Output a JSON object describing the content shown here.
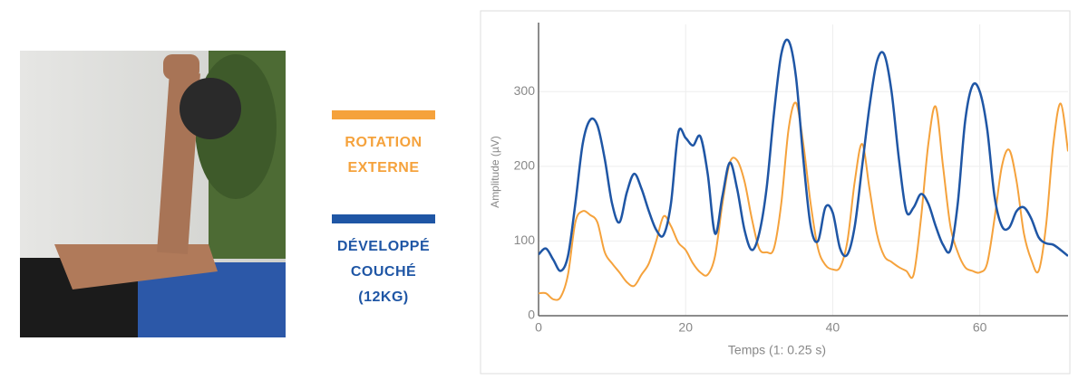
{
  "chart_data": {
    "type": "line",
    "x_label": "Temps (1: 0.25 s)",
    "y_label": "Amplitude (µV)",
    "x": [
      0,
      1,
      2,
      3,
      4,
      5,
      6,
      7,
      8,
      9,
      10,
      11,
      12,
      13,
      14,
      15,
      16,
      17,
      18,
      19,
      20,
      21,
      22,
      23,
      24,
      25,
      26,
      27,
      28,
      29,
      30,
      31,
      32,
      33,
      34,
      35,
      36,
      37,
      38,
      39,
      40,
      41,
      42,
      43,
      44,
      45,
      46,
      47,
      48,
      49,
      50,
      51,
      52,
      53,
      54,
      55,
      56,
      57,
      58,
      59,
      60,
      61,
      62,
      63,
      64,
      65,
      66,
      67,
      68,
      69,
      70,
      71,
      72
    ],
    "series": [
      {
        "name": "ROTATION EXTERNE",
        "color": "#f5a23c",
        "values": [
          30,
          30,
          22,
          25,
          55,
          125,
          140,
          135,
          125,
          85,
          70,
          58,
          45,
          40,
          55,
          70,
          100,
          133,
          120,
          98,
          88,
          70,
          58,
          55,
          80,
          150,
          205,
          208,
          180,
          130,
          90,
          85,
          90,
          150,
          250,
          285,
          230,
          150,
          90,
          68,
          62,
          65,
          100,
          180,
          230,
          170,
          110,
          80,
          72,
          65,
          60,
          55,
          130,
          230,
          280,
          200,
          120,
          85,
          65,
          60,
          58,
          70,
          130,
          200,
          222,
          180,
          110,
          75,
          60,
          120,
          230,
          284,
          220
        ]
      },
      {
        "name": "DÉVELOPPÉ COUCHÉ (12KG)",
        "color": "#1f56a5",
        "values": [
          82,
          90,
          75,
          60,
          80,
          150,
          230,
          262,
          255,
          210,
          150,
          125,
          165,
          190,
          170,
          140,
          115,
          108,
          150,
          245,
          238,
          228,
          240,
          190,
          110,
          160,
          205,
          170,
          115,
          88,
          110,
          170,
          270,
          350,
          368,
          320,
          210,
          120,
          100,
          145,
          138,
          90,
          82,
          120,
          200,
          280,
          340,
          350,
          300,
          210,
          140,
          145,
          163,
          150,
          120,
          95,
          88,
          150,
          260,
          308,
          300,
          250,
          160,
          120,
          118,
          140,
          145,
          130,
          105,
          97,
          95,
          88,
          80
        ]
      }
    ],
    "xlim": [
      0,
      72
    ],
    "ylim": [
      0,
      390
    ],
    "xticks": [
      0,
      20,
      40,
      60
    ],
    "yticks": [
      0,
      100,
      200,
      300
    ],
    "grid": true
  }
}
